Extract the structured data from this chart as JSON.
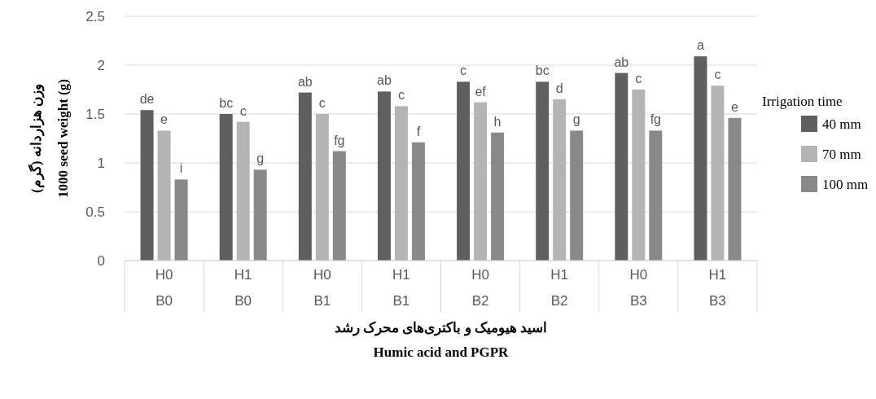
{
  "chart_data": {
    "type": "bar",
    "categories": [
      "H0\nB0",
      "H1\nB0",
      "H0\nB1",
      "H1\nB1",
      "H0\nB2",
      "H1\nB2",
      "H0\nB3",
      "H1\nB3"
    ],
    "xlabel": "اسید هیومیک و باکتری‌های محرک رشد\nHumic acid and PGPR",
    "ylabel": "وزن هزاردانه (گرم)\n1000 seed weight (g)",
    "legend_title": "Irrigation time",
    "series": [
      {
        "name": "40 mm",
        "color": "#5f5f5f",
        "values": [
          1.54,
          1.5,
          1.72,
          1.73,
          1.83,
          1.83,
          1.92,
          2.09
        ],
        "value_labels": [
          "de",
          "bc",
          "ab",
          "ab",
          "c",
          "bc",
          "ab",
          "a"
        ]
      },
      {
        "name": "70 mm",
        "color": "#b4b4b4",
        "values": [
          1.33,
          1.42,
          1.5,
          1.58,
          1.62,
          1.65,
          1.75,
          1.79
        ],
        "value_labels": [
          "e",
          "c",
          "c",
          "c",
          "ef",
          "d",
          "c",
          "c"
        ]
      },
      {
        "name": "100 mm",
        "color": "#898989",
        "values": [
          0.83,
          0.93,
          1.12,
          1.21,
          1.31,
          1.33,
          1.33,
          1.46
        ],
        "value_labels": [
          "i",
          "g",
          "fg",
          "f",
          "h",
          "g",
          "fg",
          "e"
        ]
      }
    ],
    "ylim": [
      0,
      2.5
    ],
    "yticks": [
      0,
      0.5,
      1,
      1.5,
      2,
      2.5
    ],
    "grid": "y",
    "legend": "right"
  }
}
